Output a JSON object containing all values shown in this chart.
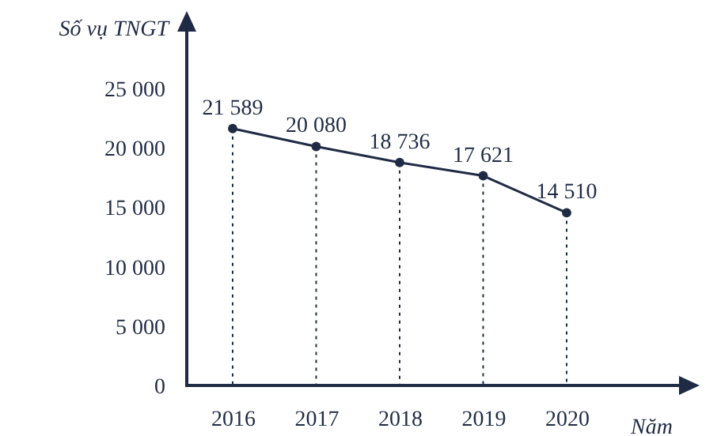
{
  "chart_data": {
    "type": "line",
    "xlabel": "Năm",
    "ylabel": "Số vụ TNGT",
    "categories": [
      "2016",
      "2017",
      "2018",
      "2019",
      "2020"
    ],
    "series": [
      {
        "color": "#1f2a44",
        "values": [
          21589,
          20080,
          18736,
          17621,
          14510
        ],
        "value_labels": [
          "21 589",
          "20 080",
          "18 736",
          "17 621",
          "14 510"
        ]
      }
    ],
    "ylim": [
      0,
      30000
    ],
    "yticks": [
      {
        "value": 0,
        "label": "0"
      },
      {
        "value": 5000,
        "label": "5 000"
      },
      {
        "value": 10000,
        "label": "10 000"
      },
      {
        "value": 15000,
        "label": "15 000"
      },
      {
        "value": 20000,
        "label": "20 000"
      },
      {
        "value": 25000,
        "label": "25 000"
      }
    ],
    "marker": "circle",
    "line_style": "solid"
  }
}
